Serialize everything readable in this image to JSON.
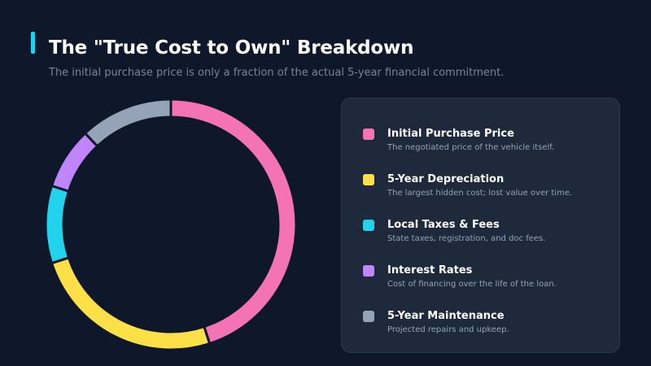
{
  "header": {
    "title": "The \"True Cost to Own\" Breakdown",
    "subtitle": "The initial purchase price is only a fraction of the actual 5-year financial commitment."
  },
  "colors": {
    "background": "#0f172a",
    "accent": "#22d3ee"
  },
  "chart_data": {
    "type": "pie",
    "variant": "donut",
    "title": "",
    "categories": [
      "Initial Purchase Price",
      "5-Year Depreciation",
      "Local Taxes & Fees",
      "Interest Rates",
      "5-Year Maintenance"
    ],
    "values": [
      45,
      25,
      10,
      8,
      12
    ],
    "colors": [
      "#f472b6",
      "#fde047",
      "#22d3ee",
      "#c084fc",
      "#94a3b8"
    ],
    "legend_position": "right"
  },
  "legend": {
    "items": [
      {
        "label": "Initial Purchase Price",
        "description": "The negotiated price of the vehicle itself.",
        "color": "#f472b6"
      },
      {
        "label": "5-Year Depreciation",
        "description": "The largest hidden cost; lost value over time.",
        "color": "#fde047"
      },
      {
        "label": "Local Taxes & Fees",
        "description": "State taxes, registration, and doc fees.",
        "color": "#22d3ee"
      },
      {
        "label": "Interest Rates",
        "description": "Cost of financing over the life of the loan.",
        "color": "#c084fc"
      },
      {
        "label": "5-Year Maintenance",
        "description": "Projected repairs and upkeep.",
        "color": "#94a3b8"
      }
    ]
  }
}
